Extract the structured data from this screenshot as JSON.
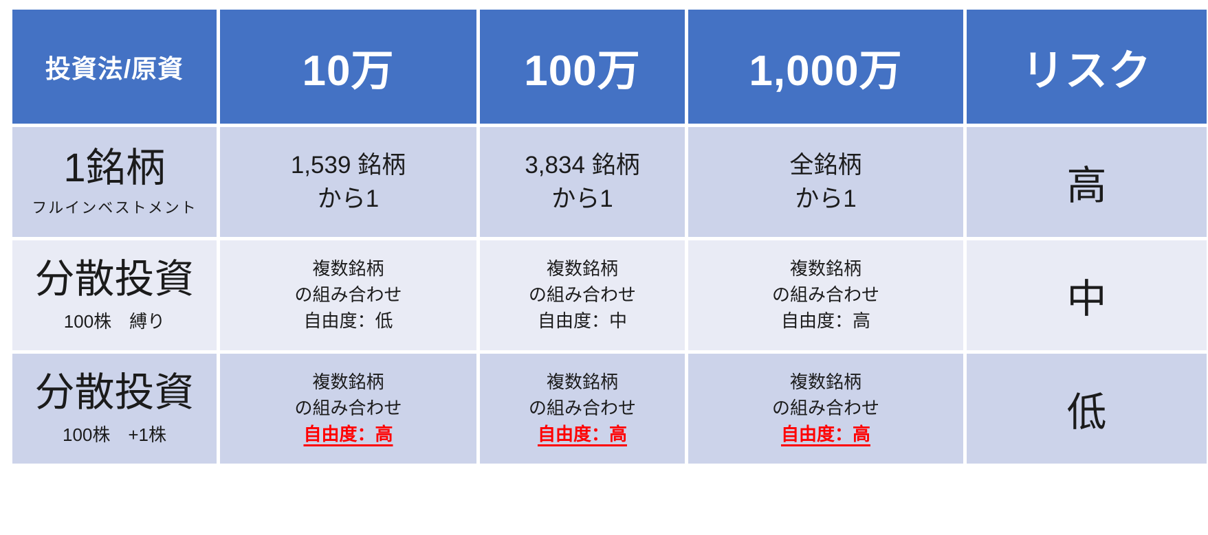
{
  "colors": {
    "header_bg": "#4472C4",
    "band_dark": "#CCD3EA",
    "band_light": "#E9EBF5",
    "emphasis_red": "#FF0000"
  },
  "table": {
    "header": [
      "投資法/原資",
      "10万",
      "100万",
      "1,000万",
      "リスク"
    ],
    "rows": [
      {
        "method_title": "1銘柄",
        "method_sub": "フルインベストメント",
        "cells": [
          [
            "1,539 銘柄",
            "から1"
          ],
          [
            "3,834 銘柄",
            "から1"
          ],
          [
            "全銘柄",
            "から1"
          ]
        ],
        "risk": "高"
      },
      {
        "method_title": "分散投資",
        "method_sub": "100株　縛り",
        "cells": [
          [
            "複数銘柄",
            "の組み合わせ",
            "自由度：低"
          ],
          [
            "複数銘柄",
            "の組み合わせ",
            "自由度：中"
          ],
          [
            "複数銘柄",
            "の組み合わせ",
            "自由度：高"
          ]
        ],
        "risk": "中"
      },
      {
        "method_title": "分散投資",
        "method_sub": "100株　+1株",
        "cells": [
          [
            "複数銘柄",
            "の組み合わせ",
            "自由度：高"
          ],
          [
            "複数銘柄",
            "の組み合わせ",
            "自由度：高"
          ],
          [
            "複数銘柄",
            "の組み合わせ",
            "自由度：高"
          ]
        ],
        "risk": "低"
      }
    ]
  },
  "chart_data": {
    "type": "table",
    "title": "投資法/原資 × リスク比較表",
    "columns": [
      "投資法/原資",
      "10万",
      "100万",
      "1,000万",
      "リスク"
    ],
    "rows": [
      [
        "1銘柄（フルインベストメント）",
        "1,539 銘柄から1",
        "3,834 銘柄から1",
        "全銘柄から1",
        "高"
      ],
      [
        "分散投資（100株　縛り）",
        "複数銘柄の組み合わせ 自由度：低",
        "複数銘柄の組み合わせ 自由度：中",
        "複数銘柄の組み合わせ 自由度：高",
        "中"
      ],
      [
        "分散投資（100株　+1株）",
        "複数銘柄の組み合わせ 自由度：高",
        "複数銘柄の組み合わせ 自由度：高",
        "複数銘柄の組み合わせ 自由度：高",
        "低"
      ]
    ],
    "layout": "header row blue (#4472C4) with white bold text; body rows banded #CCD3EA / #E9EBF5; last-row freedom lines red bold underlined"
  }
}
